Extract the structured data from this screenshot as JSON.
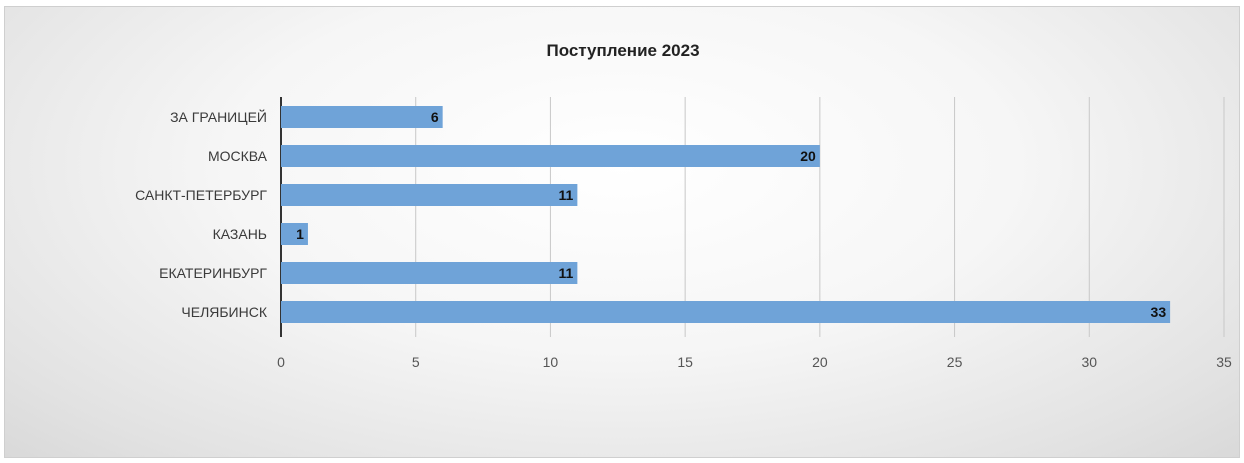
{
  "chart_data": {
    "type": "bar",
    "orientation": "horizontal",
    "title": "Поступление 2023",
    "categories": [
      "ЗА ГРАНИЦЕЙ",
      "МОСКВА",
      "САНКТ-ПЕТЕРБУРГ",
      "КАЗАНЬ",
      "ЕКАТЕРИНБУРГ",
      "ЧЕЛЯБИНСК"
    ],
    "values": [
      6,
      20,
      11,
      1,
      11,
      33
    ],
    "xlim": [
      0,
      35
    ],
    "xticks": [
      "0",
      "5",
      "10",
      "15",
      "20",
      "25",
      "30",
      "35"
    ],
    "grid": "vertical",
    "legend": "none",
    "bar_color": "#6fa3d8",
    "data_labels": "inside-end"
  }
}
